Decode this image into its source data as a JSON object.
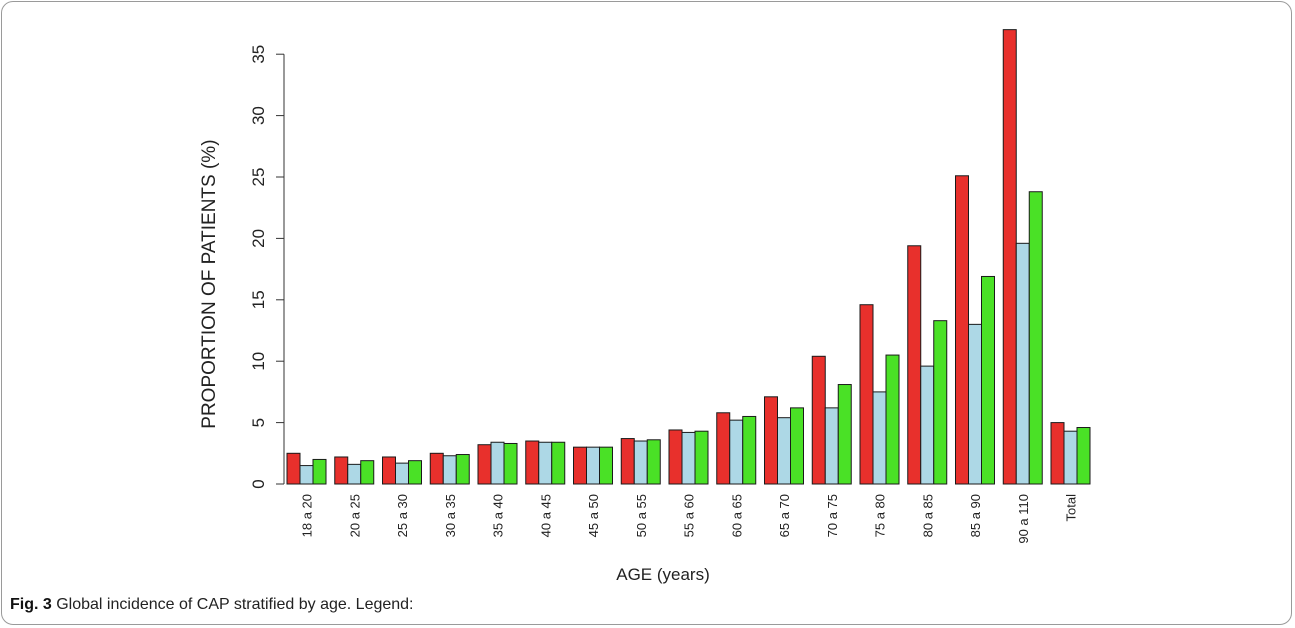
{
  "caption": {
    "label": "Fig. 3",
    "text": "Global incidence of CAP stratified by age. Legend:"
  },
  "colors": {
    "series_1": "#e8302c",
    "series_2": "#add8e6",
    "series_3": "#4ae126",
    "stroke": "#1a1a1a"
  },
  "chart_data": {
    "type": "bar",
    "xlabel": "AGE (years)",
    "ylabel": "PROPORTION OF PATIENTS (%)",
    "ylim": [
      0,
      37
    ],
    "yticks": [
      0,
      5,
      10,
      15,
      20,
      25,
      30,
      35
    ],
    "grid": false,
    "legend": "none",
    "categories": [
      "18 a 20",
      "20 a 25",
      "25 a 30",
      "30 a 35",
      "35 a 40",
      "40 a 45",
      "45 a 50",
      "50 a 55",
      "55 a 60",
      "60 a 65",
      "65 a 70",
      "70 a 75",
      "75 a 80",
      "80 a 85",
      "85 a 90",
      "90 a 110",
      "Total"
    ],
    "series": [
      {
        "values": [
          2.5,
          2.2,
          2.2,
          2.5,
          3.2,
          3.5,
          3.0,
          3.7,
          4.4,
          5.8,
          7.1,
          10.4,
          14.6,
          19.4,
          25.1,
          37.0,
          5.0
        ]
      },
      {
        "values": [
          1.5,
          1.6,
          1.7,
          2.3,
          3.4,
          3.4,
          3.0,
          3.5,
          4.2,
          5.2,
          5.4,
          6.2,
          7.5,
          9.6,
          13.0,
          19.6,
          4.3
        ]
      },
      {
        "values": [
          2.0,
          1.9,
          1.9,
          2.4,
          3.3,
          3.4,
          3.0,
          3.6,
          4.3,
          5.5,
          6.2,
          8.1,
          10.5,
          13.3,
          16.9,
          23.8,
          4.6
        ]
      }
    ]
  }
}
